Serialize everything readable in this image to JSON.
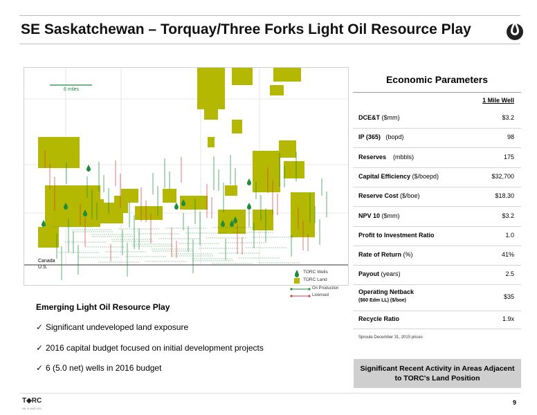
{
  "header": {
    "title": "SE Saskatchewan – Torquay/Three Forks Light Oil Resource Play"
  },
  "map": {
    "scale_label": "6 miles",
    "canada_label": "Canada",
    "us_label": "U.S.",
    "legend": {
      "torc_wells": "TORC Wells",
      "torc_land": "TORC Land",
      "on_production": "On Production",
      "licensed": "Licensed"
    },
    "land_color": "#b5b800",
    "well_color": "#1e8c3a"
  },
  "economics": {
    "title": "Economic Parameters",
    "column_header": "1 Mile Well",
    "rows": [
      {
        "label": "DCE&T",
        "unit": " ($mm)",
        "value": "$3.2"
      },
      {
        "label": "IP (365)",
        "unit": "   (bopd)",
        "value": "98"
      },
      {
        "label": "Reserves",
        "unit": "    (mbbls)",
        "value": "175"
      },
      {
        "label": "Capital Efficiency",
        "unit": " ($/boepd)",
        "value": "$32,700"
      },
      {
        "label": "Reserve Cost",
        "unit": " ($/boe)",
        "value": "$18.30"
      },
      {
        "label": "NPV 10",
        "unit": " ($mm)",
        "value": "$3.2"
      },
      {
        "label": "Profit to Investment Ratio",
        "unit": "",
        "value": "1.0"
      },
      {
        "label": "Rate of Return",
        "unit": " (%)",
        "value": "41%"
      },
      {
        "label": "Payout",
        "unit": " (years)",
        "value": "2.5"
      },
      {
        "label": "Operating Netback",
        "unit": "",
        "sublabel": "($60 Edm LL) ($/boe)",
        "value": "$35"
      },
      {
        "label": "Recycle Ratio",
        "unit": "",
        "value": "1.9x"
      }
    ],
    "note": "Sproule December 31, 2015 prices"
  },
  "play": {
    "title": "Emerging Light Oil Resource Play",
    "bullets": [
      "Significant undeveloped land exposure",
      "2016 capital budget focused on initial development projects",
      "6 (5.0 net) wells in 2016 budget"
    ]
  },
  "callout": {
    "line1": "Significant Recent Activity in Areas Adjacent",
    "line2": "to TORC's Land Position"
  },
  "footer": {
    "logo": "T◆RC",
    "logo_sub": "OIL & GAS LTD.",
    "page_number": "9"
  }
}
